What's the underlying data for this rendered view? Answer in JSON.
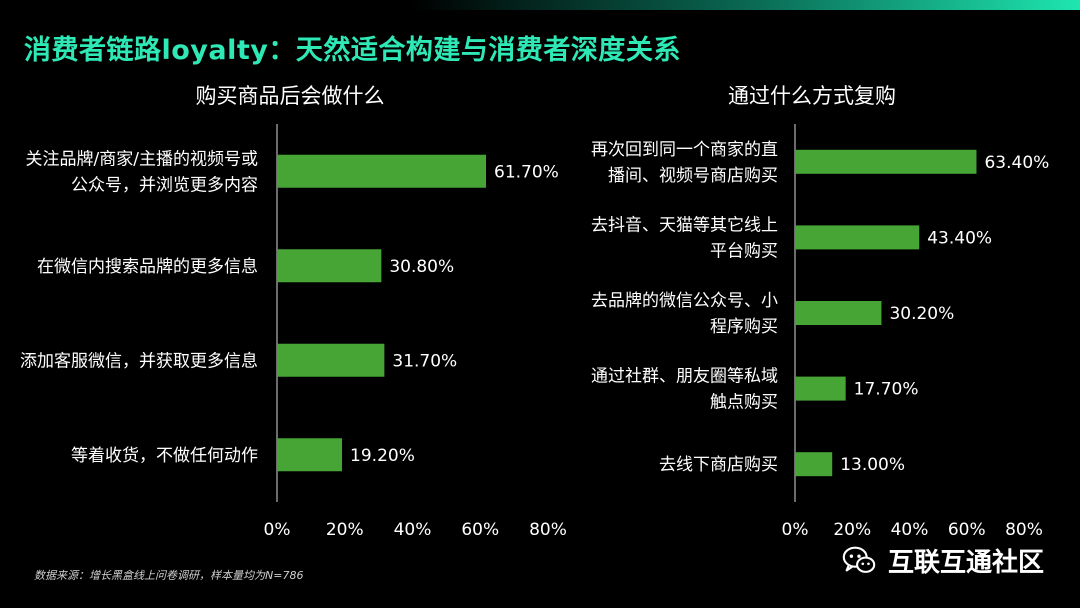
{
  "title": "消费者链路loyalty：天然适合构建与消费者深度关系",
  "footnote": "数据来源：增长黑盒线上问卷调研，样本量均为N=786",
  "brand": {
    "name": "互联互通社区"
  },
  "colors": {
    "bar": "#47a536",
    "title": "#2ee8b5",
    "axis": "#d9d9d9"
  },
  "chart_data": [
    {
      "type": "bar",
      "orientation": "horizontal",
      "title": "购买商品后会做什么",
      "categories": [
        [
          "关注品牌/商家/主播的视频号或",
          "公众号，并浏览更多内容"
        ],
        [
          "在微信内搜索品牌的更多信息"
        ],
        [
          "添加客服微信，并获取更多信息"
        ],
        [
          "等着收货，不做任何动作"
        ]
      ],
      "values": [
        61.7,
        30.8,
        31.7,
        19.2
      ],
      "value_labels": [
        "61.70%",
        "30.80%",
        "31.70%",
        "19.20%"
      ],
      "xlim": [
        0,
        80
      ],
      "xticks": [
        "0%",
        "20%",
        "40%",
        "60%",
        "80%"
      ],
      "grid": false
    },
    {
      "type": "bar",
      "orientation": "horizontal",
      "title": "通过什么方式复购",
      "categories": [
        [
          "再次回到同一个商家的直",
          "播间、视频号商店购买"
        ],
        [
          "去抖音、天猫等其它线上",
          "平台购买"
        ],
        [
          "去品牌的微信公众号、小",
          "程序购买"
        ],
        [
          "通过社群、朋友圈等私域",
          "触点购买"
        ],
        [
          "去线下商店购买"
        ]
      ],
      "values": [
        63.4,
        43.4,
        30.2,
        17.7,
        13.0
      ],
      "value_labels": [
        "63.40%",
        "43.40%",
        "30.20%",
        "17.70%",
        "13.00%"
      ],
      "xlim": [
        0,
        80
      ],
      "xticks": [
        "0%",
        "20%",
        "40%",
        "60%",
        "80%"
      ],
      "grid": false
    }
  ]
}
